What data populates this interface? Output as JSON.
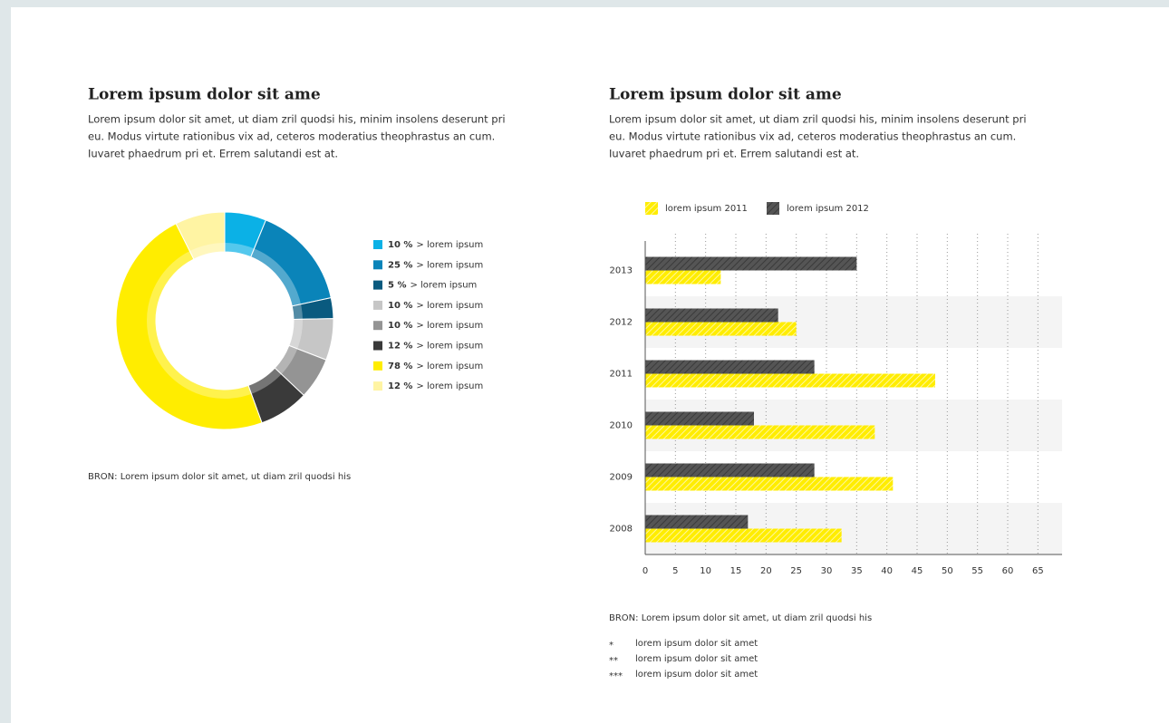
{
  "chart_data": [
    {
      "type": "donut",
      "title": "Lorem ipsum dolor sit ame",
      "description": [
        "Lorem ipsum dolor sit amet, ut diam zril quodsi his, minim insolens deserunt pri",
        "eu. Modus virtute rationibus vix ad, ceteros moderatius theophrastus an cum.",
        "Iuvaret phaedrum pri et. Errem salutandi est at."
      ],
      "categories": [
        "> lorem ipsum",
        "> lorem ipsum",
        "> lorem ipsum",
        "> lorem ipsum",
        "> lorem ipsum",
        "> lorem ipsum",
        "> lorem ipsum",
        "> lorem ipsum"
      ],
      "values": [
        10,
        25,
        5,
        10,
        10,
        12,
        78,
        12
      ],
      "value_labels": [
        "10 %",
        "25 %",
        "5 %",
        "10 %",
        "10 %",
        "12 %",
        "78 %",
        "12 %"
      ],
      "colors": [
        "#0bb1e6",
        "#0a84b9",
        "#0a5a7f",
        "#c6c6c6",
        "#949494",
        "#3a3a3a",
        "#ffed00",
        "#fff4a3"
      ],
      "source": "BRON: Lorem ipsum dolor sit amet, ut diam zril quodsi his"
    },
    {
      "type": "hbar",
      "title": "Lorem ipsum dolor sit ame",
      "description": [
        "Lorem ipsum dolor sit amet, ut diam zril quodsi his, minim insolens deserunt pri",
        "eu. Modus virtute rationibus vix ad, ceteros moderatius theophrastus an cum.",
        "Iuvaret phaedrum pri et. Errem salutandi est at."
      ],
      "categories": [
        "2013",
        "2012",
        "2011",
        "2010",
        "2009",
        "2008"
      ],
      "series": [
        {
          "name": "lorem ipsum 2011",
          "color": "#ffed00",
          "values": [
            12.5,
            25,
            48,
            38,
            41,
            32.5
          ]
        },
        {
          "name": "lorem ipsum 2012",
          "color": "#555555",
          "values": [
            35,
            22,
            28,
            18,
            28,
            17
          ]
        }
      ],
      "xlim": [
        0,
        69
      ],
      "xticks": [
        0,
        5,
        10,
        15,
        20,
        25,
        30,
        35,
        40,
        45,
        50,
        55,
        60,
        65
      ],
      "grid": true,
      "source": "BRON: Lorem ipsum dolor sit amet, ut diam zril quodsi his",
      "footnotes": [
        {
          "mark": "*",
          "text": "lorem ipsum dolor sit amet"
        },
        {
          "mark": "**",
          "text": "lorem ipsum dolor sit amet"
        },
        {
          "mark": "***",
          "text": "lorem ipsum dolor sit amet"
        }
      ]
    }
  ]
}
